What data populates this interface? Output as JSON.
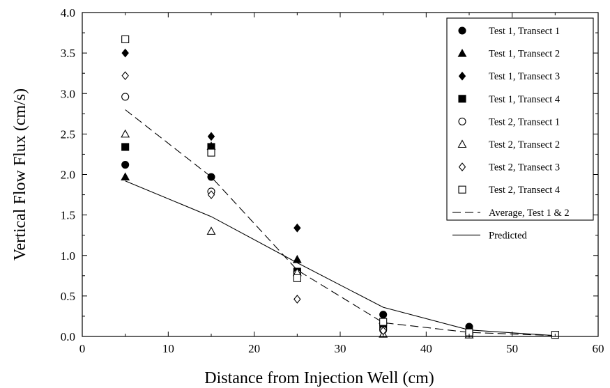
{
  "chart_data": {
    "type": "scatter",
    "title": "",
    "xlabel": "Distance from Injection Well (cm)",
    "ylabel": "Vertical Flow Flux (cm/s)",
    "xlim": [
      0,
      60
    ],
    "ylim": [
      0,
      4
    ],
    "x_ticks": [
      0,
      10,
      20,
      30,
      40,
      50,
      60
    ],
    "y_ticks": [
      0.0,
      0.5,
      1.0,
      1.5,
      2.0,
      2.5,
      3.0,
      3.5,
      4.0
    ],
    "x_tick_labels": [
      "0",
      "10",
      "20",
      "30",
      "40",
      "50",
      "60"
    ],
    "y_tick_labels": [
      "0.0",
      "0.5",
      "1.0",
      "1.5",
      "2.0",
      "2.5",
      "3.0",
      "3.5",
      "4.0"
    ],
    "grid": false,
    "legend_position": "top-right",
    "series": [
      {
        "name": "Test 1, Transect 1",
        "marker": "circle-filled",
        "x": [
          5,
          15,
          25,
          35,
          45
        ],
        "y": [
          2.12,
          1.97,
          0.8,
          0.27,
          0.12
        ]
      },
      {
        "name": "Test 1, Transect 2",
        "marker": "triangle-filled",
        "x": [
          5,
          15,
          25,
          35,
          45
        ],
        "y": [
          1.97,
          2.35,
          0.95,
          0.2,
          0.07
        ]
      },
      {
        "name": "Test 1, Transect 3",
        "marker": "diamond-filled",
        "x": [
          5,
          15,
          25,
          35,
          45
        ],
        "y": [
          3.5,
          2.47,
          1.34,
          0.2,
          0.08
        ]
      },
      {
        "name": "Test 1, Transect 4",
        "marker": "square-filled",
        "x": [
          5,
          15,
          25,
          35,
          45
        ],
        "y": [
          2.34,
          2.34,
          0.8,
          0.13,
          0.05
        ]
      },
      {
        "name": "Test 2, Transect 1",
        "marker": "circle-open",
        "x": [
          5,
          15,
          25,
          35,
          45
        ],
        "y": [
          2.96,
          1.79,
          0.78,
          0.08,
          0.05
        ]
      },
      {
        "name": "Test 2, Transect 2",
        "marker": "triangle-open",
        "x": [
          5,
          15,
          25,
          35,
          45
        ],
        "y": [
          2.5,
          1.3,
          0.79,
          0.03,
          0.02
        ]
      },
      {
        "name": "Test 2, Transect 3",
        "marker": "diamond-open",
        "x": [
          5,
          15,
          25,
          35,
          45
        ],
        "y": [
          3.22,
          1.75,
          0.46,
          0.07,
          0.04
        ]
      },
      {
        "name": "Test 2, Transect 4",
        "marker": "square-open",
        "x": [
          5,
          15,
          25,
          35,
          45,
          55
        ],
        "y": [
          3.67,
          2.27,
          0.72,
          0.18,
          0.05,
          0.02
        ]
      }
    ],
    "lines": [
      {
        "name": "Average, Test 1 & 2",
        "style": "dashed",
        "x": [
          5,
          15,
          25,
          35,
          45,
          55
        ],
        "y": [
          2.8,
          1.97,
          0.82,
          0.17,
          0.05,
          0.01
        ]
      },
      {
        "name": "Predicted",
        "style": "solid",
        "x": [
          5,
          15,
          25,
          35,
          45,
          55
        ],
        "y": [
          1.92,
          1.48,
          0.91,
          0.36,
          0.08,
          0.01
        ]
      }
    ]
  }
}
